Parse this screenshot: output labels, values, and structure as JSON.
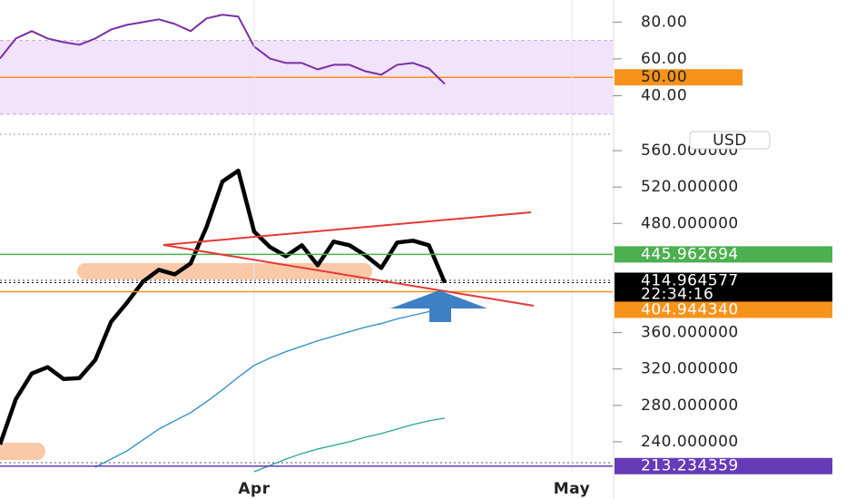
{
  "chart_data": [
    {
      "type": "line",
      "ylim": [
        24,
        92
      ],
      "yticks": [
        {
          "value": 40,
          "label": "40.00"
        },
        {
          "value": 60,
          "label": "60.00"
        },
        {
          "value": 80,
          "label": "80.00"
        }
      ],
      "band": [
        30,
        70
      ],
      "band_color": "#f1e3fb",
      "level": {
        "value": 50,
        "label": "50.00",
        "color": "#f7931a"
      },
      "series": [
        {
          "color": "#7b2fa5",
          "values": [
            60.2,
            71.1,
            75.1,
            71.1,
            69.1,
            67.7,
            71.1,
            76,
            78.5,
            80,
            81.5,
            79,
            75.1,
            82,
            84,
            83,
            66.7,
            60.2,
            57.8,
            57.8,
            54.3,
            56.8,
            56.8,
            53.3,
            51.4,
            56.8,
            57.8,
            54.8,
            46.4,
            null,
            null,
            null,
            null,
            null,
            null,
            null,
            null,
            null,
            null
          ]
        }
      ]
    },
    {
      "type": "line",
      "unit": "USD",
      "categories": [
        null,
        null,
        null,
        null,
        null,
        null,
        null,
        null,
        null,
        null,
        null,
        null,
        null,
        null,
        null,
        null,
        "Apr",
        null,
        null,
        null,
        null,
        null,
        null,
        null,
        null,
        null,
        null,
        null,
        null,
        null,
        null,
        null,
        null,
        null,
        null,
        null,
        "May",
        null,
        null
      ],
      "ylim": [
        207,
        581
      ],
      "yticks": [
        {
          "value": 240,
          "label": "240.000000"
        },
        {
          "value": 280,
          "label": "280.000000"
        },
        {
          "value": 320,
          "label": "320.000000"
        },
        {
          "value": 360,
          "label": "360.000000"
        },
        {
          "value": 480,
          "label": "480.000000"
        },
        {
          "value": 520,
          "label": "520.000000"
        },
        {
          "value": 560,
          "label": "560.000000"
        }
      ],
      "levels": [
        {
          "value": 445.962694,
          "color": "#4caf50"
        },
        {
          "value": 414.964577,
          "color": "#000000",
          "time": "22:34:16"
        },
        {
          "value": 404.94434,
          "label": "404.944340",
          "color": "#f7931a"
        },
        {
          "value": 213.234359,
          "color": "#673ab7"
        }
      ],
      "series": [
        {
          "color": "#000000",
          "values": [
            237,
            287,
            315,
            322,
            309,
            310,
            330,
            372,
            393,
            416,
            429,
            424,
            436,
            476,
            526,
            538,
            471,
            454,
            444,
            456,
            434,
            460,
            456,
            445,
            431,
            459,
            461,
            456,
            415,
            null,
            null,
            null,
            null,
            null,
            null,
            null,
            null,
            null,
            null
          ]
        },
        {
          "color": "#2b8cc4",
          "values": [
            null,
            null,
            null,
            null,
            null,
            null,
            212,
            221,
            230,
            242,
            254,
            263,
            272,
            284,
            297,
            311,
            324,
            332,
            339,
            345,
            351,
            356,
            361,
            366,
            370,
            375,
            379,
            383,
            387,
            null,
            null,
            null,
            null,
            null,
            null,
            null,
            null,
            null,
            null
          ]
        },
        {
          "color": "#26a69a",
          "values": [
            null,
            null,
            null,
            null,
            null,
            null,
            null,
            null,
            null,
            null,
            null,
            null,
            null,
            null,
            null,
            null,
            207,
            214,
            221,
            227,
            232,
            236,
            240,
            245,
            249,
            254,
            259,
            263,
            266,
            null,
            null,
            null,
            null,
            null,
            null,
            null,
            null,
            null,
            null
          ]
        }
      ]
    }
  ]
}
